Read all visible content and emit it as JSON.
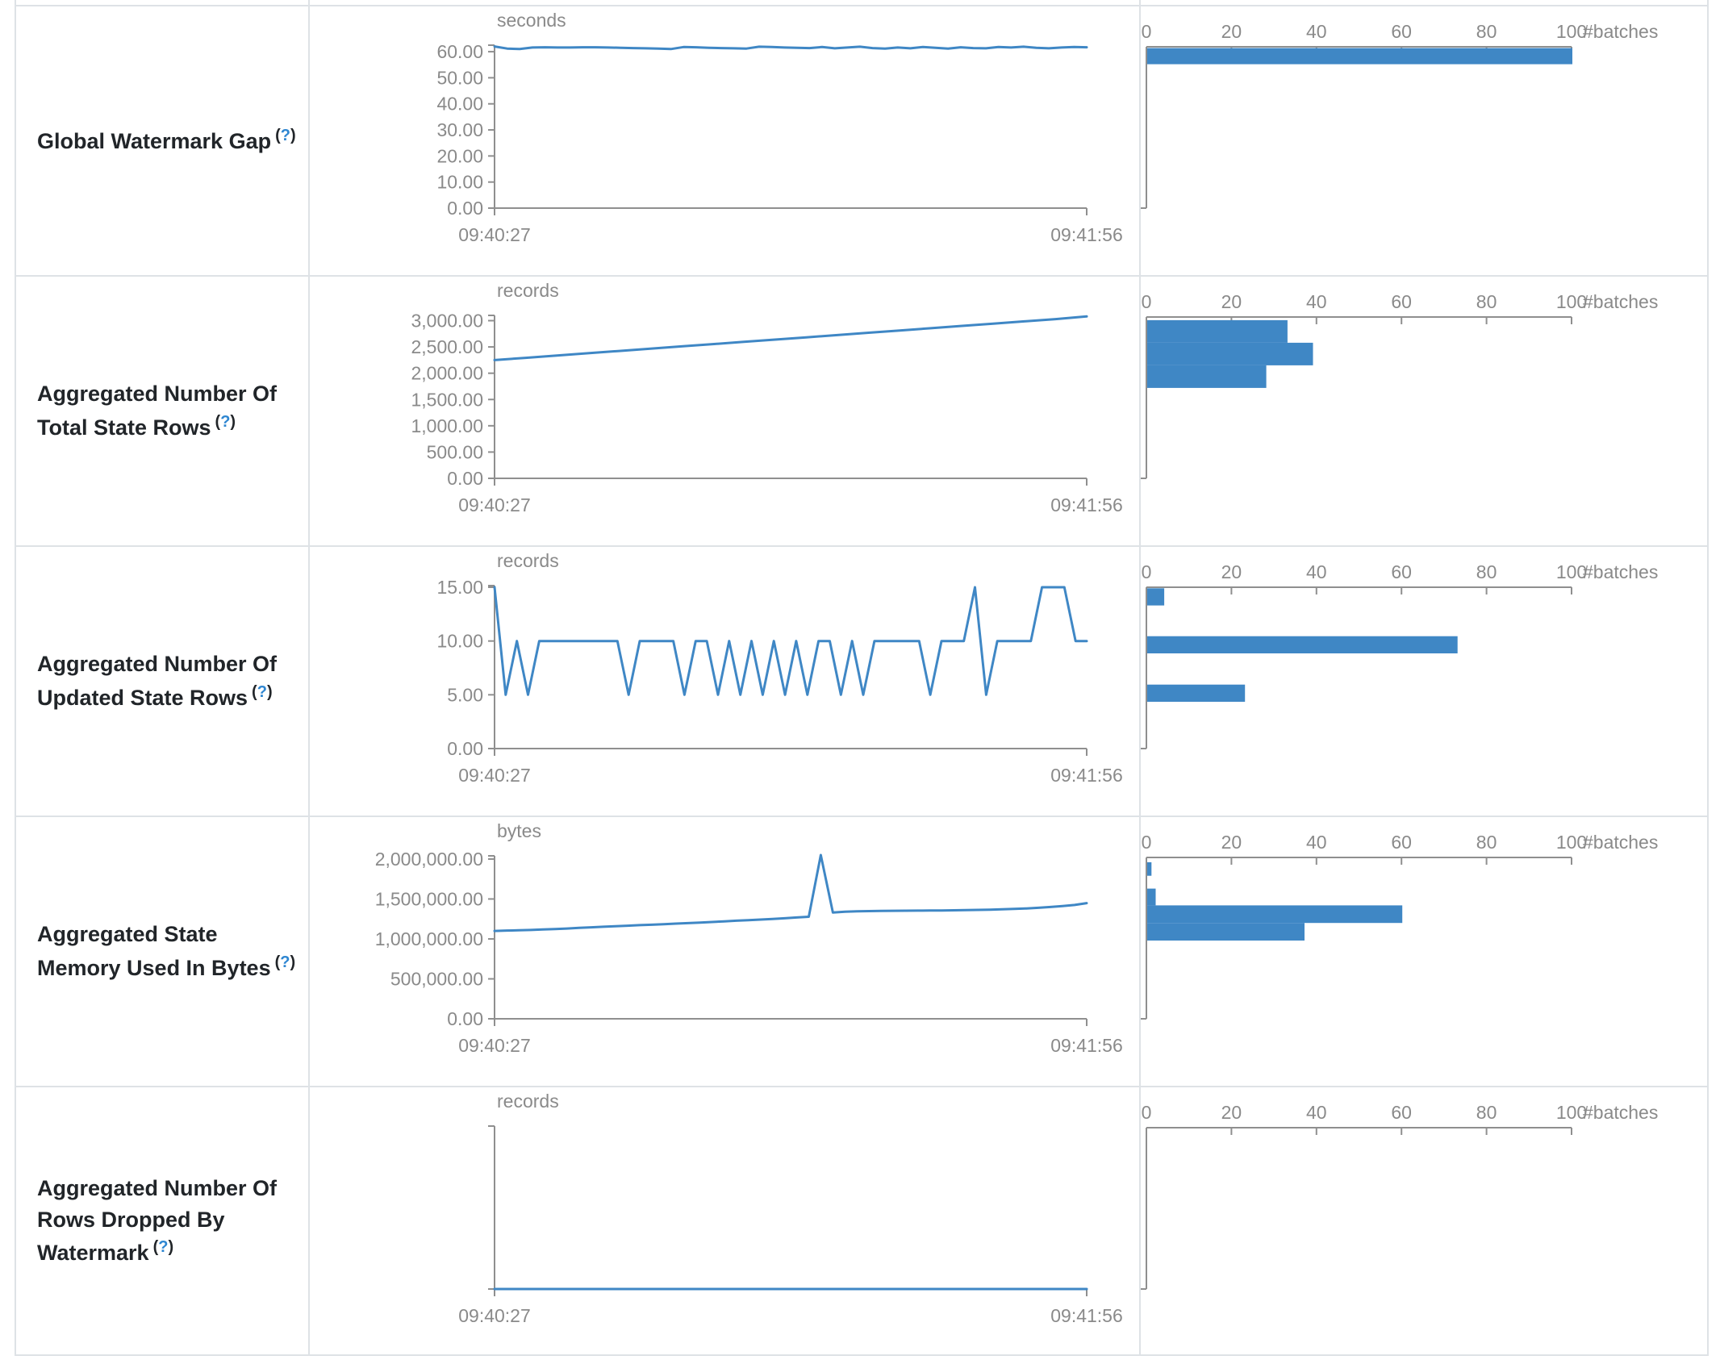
{
  "chart_data": [
    {
      "type": "line",
      "row_label": "Global Watermark Gap",
      "help": {
        "pre": "(",
        "icon": "?",
        "post": ")"
      },
      "unit": "seconds",
      "show_x_axis": true,
      "x_ticks": [
        "09:40:27",
        "09:41:56"
      ],
      "y_ticks": [
        {
          "v": 60,
          "label": "60.00"
        },
        {
          "v": 50,
          "label": "50.00"
        },
        {
          "v": 40,
          "label": "40.00"
        },
        {
          "v": 30,
          "label": "30.00"
        },
        {
          "v": 20,
          "label": "20.00"
        },
        {
          "v": 10,
          "label": "10.00"
        },
        {
          "v": 0,
          "label": "0.00"
        }
      ],
      "ylim": [
        0,
        62.5
      ],
      "series": [
        62.0,
        61.2,
        61.0,
        61.6,
        61.7,
        61.6,
        61.6,
        61.7,
        61.7,
        61.6,
        61.5,
        61.4,
        61.3,
        61.2,
        61.0,
        61.8,
        61.7,
        61.5,
        61.4,
        61.3,
        61.2,
        61.9,
        61.8,
        61.6,
        61.5,
        61.4,
        61.8,
        61.3,
        61.6,
        61.9,
        61.4,
        61.2,
        61.6,
        61.3,
        61.8,
        61.5,
        61.2,
        61.7,
        61.4,
        61.3,
        61.8,
        61.6,
        61.9,
        61.5,
        61.3,
        61.6,
        61.8,
        61.7
      ],
      "histogram": {
        "type": "bar",
        "x_label": "#batches",
        "x_ticks": [
          "0",
          "20",
          "40",
          "60",
          "80",
          "100"
        ],
        "xlim": [
          0,
          100
        ],
        "bins": [
          {
            "lo": 55.2,
            "hi": 61.4,
            "count": 100
          }
        ]
      }
    },
    {
      "type": "line",
      "row_label": "Aggregated Number Of Total State Rows",
      "help": {
        "pre": "(",
        "icon": "?",
        "post": ")"
      },
      "unit": "records",
      "show_x_axis": true,
      "x_ticks": [
        "09:40:27",
        "09:41:56"
      ],
      "y_ticks": [
        {
          "v": 3000,
          "label": "3,000.00"
        },
        {
          "v": 2500,
          "label": "2,500.00"
        },
        {
          "v": 2000,
          "label": "2,000.00"
        },
        {
          "v": 1500,
          "label": "1,500.00"
        },
        {
          "v": 1000,
          "label": "1,000.00"
        },
        {
          "v": 500,
          "label": "500.00"
        },
        {
          "v": 0,
          "label": "0.00"
        }
      ],
      "ylim": [
        0,
        3100
      ],
      "series": [
        2250,
        2293,
        2336,
        2380,
        2423,
        2466,
        2510,
        2553,
        2596,
        2640,
        2683,
        2726,
        2770,
        2813,
        2856,
        2900,
        2943,
        2986,
        3030,
        3080
      ],
      "histogram": {
        "type": "bar",
        "x_label": "#batches",
        "x_ticks": [
          "0",
          "20",
          "40",
          "60",
          "80",
          "100"
        ],
        "xlim": [
          0,
          100
        ],
        "bins": [
          {
            "lo": 2580,
            "hi": 3010,
            "count": 33
          },
          {
            "lo": 2150,
            "hi": 2580,
            "count": 39
          },
          {
            "lo": 1720,
            "hi": 2150,
            "count": 28
          }
        ]
      }
    },
    {
      "type": "line",
      "row_label": "Aggregated Number Of Updated State Rows",
      "help": {
        "pre": "(",
        "icon": "?",
        "post": ")"
      },
      "unit": "records",
      "show_x_axis": true,
      "x_ticks": [
        "09:40:27",
        "09:41:56"
      ],
      "y_ticks": [
        {
          "v": 15,
          "label": "15.00"
        },
        {
          "v": 10,
          "label": "10.00"
        },
        {
          "v": 5,
          "label": "5.00"
        },
        {
          "v": 0,
          "label": "0.00"
        }
      ],
      "ylim": [
        0,
        15.15
      ],
      "series": [
        15,
        5,
        10,
        5,
        10,
        10,
        10,
        10,
        10,
        10,
        10,
        10,
        5,
        10,
        10,
        10,
        10,
        5,
        10,
        10,
        5,
        10,
        5,
        10,
        5,
        10,
        5,
        10,
        5,
        10,
        10,
        5,
        10,
        5,
        10,
        10,
        10,
        10,
        10,
        5,
        10,
        10,
        10,
        15,
        5,
        10,
        10,
        10,
        10,
        15,
        15,
        15,
        10,
        10
      ],
      "histogram": {
        "type": "bar",
        "x_label": "#batches",
        "x_ticks": [
          "0",
          "20",
          "40",
          "60",
          "80",
          "100"
        ],
        "xlim": [
          0,
          100
        ],
        "bins": [
          {
            "lo": 13.3,
            "hi": 14.9,
            "count": 4
          },
          {
            "lo": 8.85,
            "hi": 10.45,
            "count": 73
          },
          {
            "lo": 4.35,
            "hi": 5.95,
            "count": 23
          }
        ]
      }
    },
    {
      "type": "line",
      "row_label": "Aggregated State Memory Used In Bytes",
      "help": {
        "pre": "(",
        "icon": "?",
        "post": ")"
      },
      "unit": "bytes",
      "show_x_axis": true,
      "x_ticks": [
        "09:40:27",
        "09:41:56"
      ],
      "y_ticks": [
        {
          "v": 2000000,
          "label": "2,000,000.00"
        },
        {
          "v": 1500000,
          "label": "1,500,000.00"
        },
        {
          "v": 1000000,
          "label": "1,000,000.00"
        },
        {
          "v": 500000,
          "label": "500,000.00"
        },
        {
          "v": 0,
          "label": "0.00"
        }
      ],
      "ylim": [
        0,
        2040000
      ],
      "series": [
        1100000,
        1105000,
        1108000,
        1112000,
        1118000,
        1124000,
        1130000,
        1138000,
        1145000,
        1152000,
        1158000,
        1165000,
        1172000,
        1178000,
        1185000,
        1192000,
        1198000,
        1205000,
        1212000,
        1220000,
        1228000,
        1235000,
        1242000,
        1250000,
        1258000,
        1268000,
        1278000,
        2050000,
        1330000,
        1340000,
        1345000,
        1348000,
        1350000,
        1352000,
        1353000,
        1354000,
        1355000,
        1356000,
        1358000,
        1360000,
        1363000,
        1366000,
        1370000,
        1375000,
        1382000,
        1390000,
        1400000,
        1412000,
        1425000,
        1448000
      ],
      "histogram": {
        "type": "bar",
        "x_label": "#batches",
        "x_ticks": [
          "0",
          "20",
          "40",
          "60",
          "80",
          "100"
        ],
        "xlim": [
          0,
          100
        ],
        "bins": [
          {
            "lo": 1790000,
            "hi": 1960000,
            "count": 1
          },
          {
            "lo": 1420000,
            "hi": 1630000,
            "count": 2
          },
          {
            "lo": 1200000,
            "hi": 1420000,
            "count": 60
          },
          {
            "lo": 980000,
            "hi": 1200000,
            "count": 37
          }
        ]
      }
    },
    {
      "type": "line",
      "row_label": "Aggregated Number Of Rows Dropped By Watermark",
      "help": {
        "pre": "(",
        "icon": "?",
        "post": ")"
      },
      "unit": "records",
      "show_x_axis": false,
      "x_ticks": [
        "09:40:27",
        "09:41:56"
      ],
      "y_ticks": [
        {
          "v": 0,
          "label": ""
        }
      ],
      "ylim": [
        0,
        1
      ],
      "series": [
        0,
        0,
        0,
        0
      ],
      "histogram": {
        "type": "bar",
        "x_label": "#batches",
        "x_ticks": [
          "0",
          "20",
          "40",
          "60",
          "80",
          "100"
        ],
        "xlim": [
          0,
          100
        ],
        "bins": []
      }
    }
  ]
}
